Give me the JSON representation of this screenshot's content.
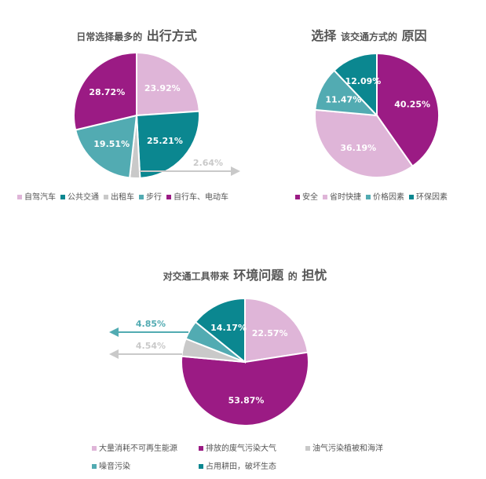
{
  "chart_data": [
    {
      "type": "pie",
      "title_parts": [
        "日常选择最多的",
        "出行方式"
      ],
      "categories": [
        "自驾汽车",
        "公共交通",
        "出租车",
        "步行",
        "自行车、电动车"
      ],
      "values": [
        23.92,
        25.21,
        2.64,
        19.51,
        28.72
      ],
      "labels": [
        "23.92%",
        "25.21%",
        "2.64%",
        "19.51%",
        "28.72%"
      ],
      "colors": [
        "#dfb5d8",
        "#0b8790",
        "#c9c9c9",
        "#52abb2",
        "#9b1b84"
      ]
    },
    {
      "type": "pie",
      "title_parts": [
        "选择",
        "该交通方式的",
        "原因"
      ],
      "categories": [
        "安全",
        "省时快捷",
        "价格因素",
        "环保因素"
      ],
      "values": [
        40.25,
        36.19,
        11.47,
        12.09
      ],
      "labels": [
        "40.25%",
        "36.19%",
        "11.47%",
        "12.09%"
      ],
      "colors": [
        "#9b1b84",
        "#dfb5d8",
        "#52abb2",
        "#0b8790"
      ]
    },
    {
      "type": "pie",
      "title_parts": [
        "对交通工具带来",
        "环境问题",
        "的",
        "担忧"
      ],
      "categories": [
        "大量消耗不可再生能源",
        "排放的废气污染大气",
        "油气污染植被和海洋",
        "噪音污染",
        "占用耕田，破坏生态"
      ],
      "values": [
        22.57,
        53.87,
        4.54,
        4.85,
        14.17
      ],
      "labels": [
        "22.57%",
        "53.87%",
        "4.54%",
        "4.85%",
        "14.17%"
      ],
      "colors": [
        "#dfb5d8",
        "#9b1b84",
        "#c9c9c9",
        "#52abb2",
        "#0b8790"
      ]
    }
  ]
}
